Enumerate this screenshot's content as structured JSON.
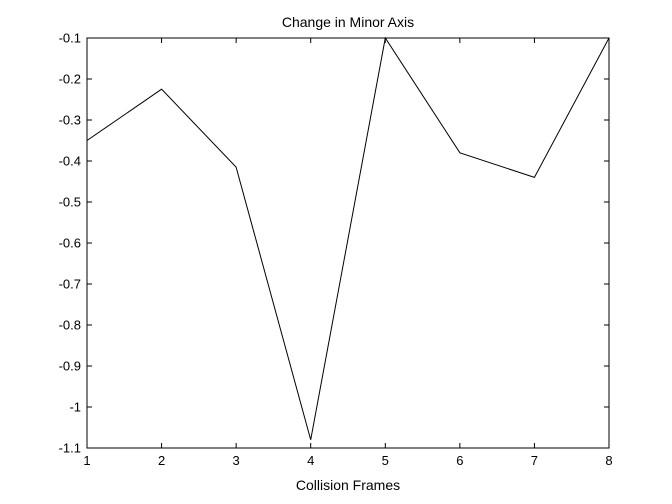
{
  "chart_data": {
    "type": "line",
    "title": "Change in Minor Axis",
    "xlabel": "Collision Frames",
    "ylabel": "",
    "xlim": [
      1,
      8
    ],
    "ylim": [
      -1.1,
      -0.1
    ],
    "xticks": [
      1,
      2,
      3,
      4,
      5,
      6,
      7,
      8
    ],
    "xtick_labels": [
      "1",
      "2",
      "3",
      "4",
      "5",
      "6",
      "7",
      "8"
    ],
    "yticks": [
      -0.1,
      -0.2,
      -0.3,
      -0.4,
      -0.5,
      -0.6,
      -0.7,
      -0.8,
      -0.9,
      -1,
      -1.1
    ],
    "ytick_labels": [
      "-0.1",
      "-0.2",
      "-0.3",
      "-0.4",
      "-0.5",
      "-0.6",
      "-0.7",
      "-0.8",
      "-0.9",
      "-1",
      "-1.1"
    ],
    "grid": false,
    "series": [
      {
        "x": [
          1,
          2,
          3,
          4,
          5,
          6,
          7,
          8
        ],
        "values": [
          -0.35,
          -0.225,
          -0.415,
          -1.08,
          -0.1,
          -0.38,
          -0.44,
          -0.1
        ],
        "color": "#000000"
      }
    ]
  }
}
